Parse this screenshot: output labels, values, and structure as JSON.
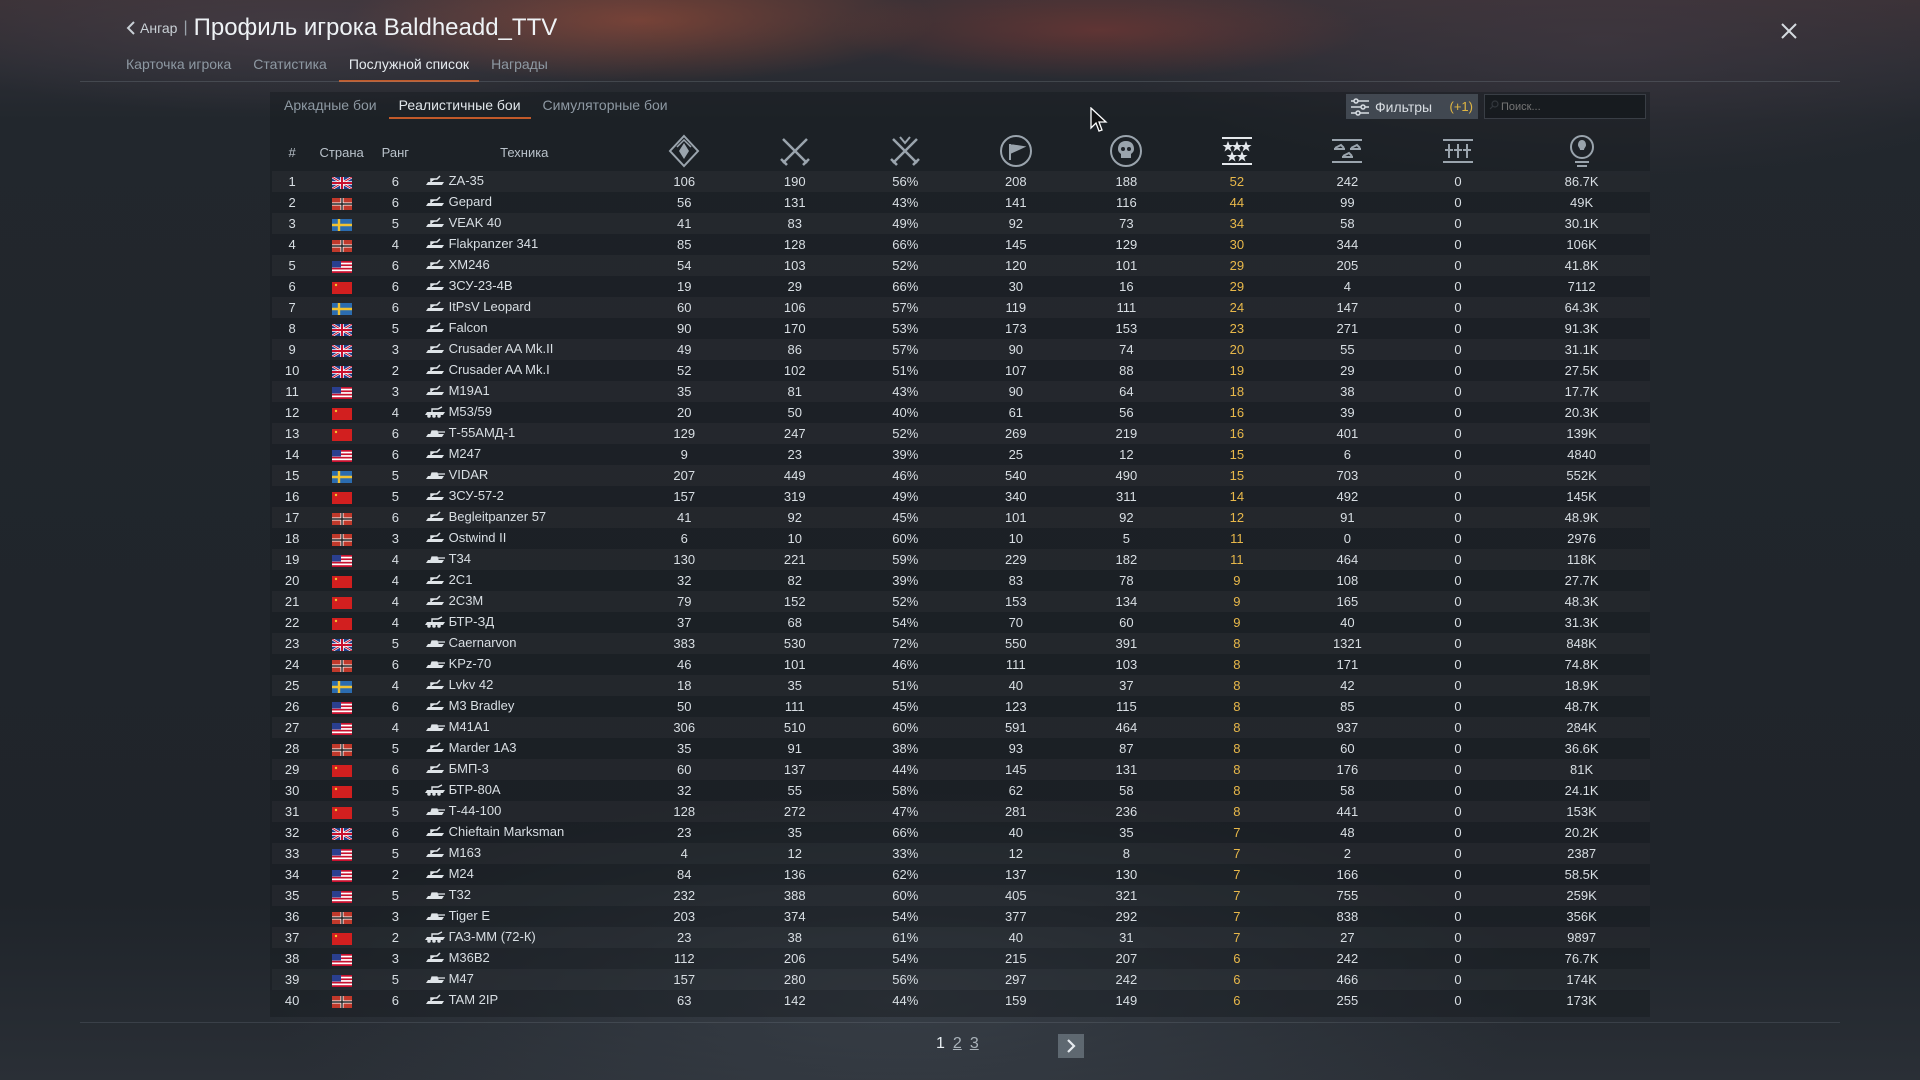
{
  "header": {
    "back_label": "Ангар",
    "separator": "|",
    "title": "Профиль игрока Baldheadd_TTV"
  },
  "tabs": [
    "Карточка игрока",
    "Статистика",
    "Послужной список",
    "Награды"
  ],
  "active_tab": 2,
  "subtabs": [
    "Аркадные бои",
    "Реалистичные бои",
    "Симуляторные бои"
  ],
  "active_subtab": 1,
  "filters": {
    "label": "Фильтры",
    "count": "(+1)"
  },
  "search": {
    "placeholder": "Поиск..."
  },
  "columns": {
    "num": "#",
    "country": "Страна",
    "rank": "Ранг",
    "vehicle": "Техника",
    "icon_cols": [
      "victories-icon",
      "battles-icon",
      "winrate-icon",
      "respawns-icon",
      "deaths-icon",
      "ace-icon",
      "air-kills-icon",
      "ground-kills-icon",
      "score-icon"
    ]
  },
  "colors": {
    "accent": "#c25a2a",
    "gold": "#e8b84a"
  },
  "rows": [
    {
      "n": "1",
      "flag": "uk",
      "rank": "6",
      "icon": "spaa",
      "name": "ZA-35",
      "c1": "106",
      "c2": "190",
      "c3": "56%",
      "c4": "208",
      "c5": "188",
      "c6": "52",
      "c7": "242",
      "c8": "0",
      "c9": "86.7K"
    },
    {
      "n": "2",
      "flag": "de",
      "rank": "6",
      "icon": "spaa",
      "name": "Gepard",
      "c1": "56",
      "c2": "131",
      "c3": "43%",
      "c4": "141",
      "c5": "116",
      "c6": "44",
      "c7": "99",
      "c8": "0",
      "c9": "49K"
    },
    {
      "n": "3",
      "flag": "se",
      "rank": "5",
      "icon": "spaa",
      "name": "VEAK 40",
      "c1": "41",
      "c2": "83",
      "c3": "49%",
      "c4": "92",
      "c5": "73",
      "c6": "34",
      "c7": "58",
      "c8": "0",
      "c9": "30.1K"
    },
    {
      "n": "4",
      "flag": "de",
      "rank": "4",
      "icon": "spaa",
      "name": "Flakpanzer 341",
      "c1": "85",
      "c2": "128",
      "c3": "66%",
      "c4": "145",
      "c5": "129",
      "c6": "30",
      "c7": "344",
      "c8": "0",
      "c9": "106K"
    },
    {
      "n": "5",
      "flag": "us",
      "rank": "6",
      "icon": "spaa",
      "name": "XM246",
      "c1": "54",
      "c2": "103",
      "c3": "52%",
      "c4": "120",
      "c5": "101",
      "c6": "29",
      "c7": "205",
      "c8": "0",
      "c9": "41.8K"
    },
    {
      "n": "6",
      "flag": "ussr",
      "rank": "6",
      "icon": "spaa",
      "name": "ЗСУ-23-4В",
      "c1": "19",
      "c2": "29",
      "c3": "66%",
      "c4": "30",
      "c5": "16",
      "c6": "29",
      "c7": "4",
      "c8": "0",
      "c9": "7112"
    },
    {
      "n": "7",
      "flag": "se",
      "rank": "6",
      "icon": "spaa",
      "name": "ItPsV Leopard",
      "c1": "60",
      "c2": "106",
      "c3": "57%",
      "c4": "119",
      "c5": "111",
      "c6": "24",
      "c7": "147",
      "c8": "0",
      "c9": "64.3K"
    },
    {
      "n": "8",
      "flag": "uk",
      "rank": "5",
      "icon": "spaa",
      "name": "Falcon",
      "c1": "90",
      "c2": "170",
      "c3": "53%",
      "c4": "173",
      "c5": "153",
      "c6": "23",
      "c7": "271",
      "c8": "0",
      "c9": "91.3K"
    },
    {
      "n": "9",
      "flag": "uk",
      "rank": "3",
      "icon": "spaa",
      "name": "Crusader AA Mk.II",
      "c1": "49",
      "c2": "86",
      "c3": "57%",
      "c4": "90",
      "c5": "74",
      "c6": "20",
      "c7": "55",
      "c8": "0",
      "c9": "31.1K"
    },
    {
      "n": "10",
      "flag": "uk",
      "rank": "2",
      "icon": "spaa",
      "name": "Crusader AA Mk.I",
      "c1": "52",
      "c2": "102",
      "c3": "51%",
      "c4": "107",
      "c5": "88",
      "c6": "19",
      "c7": "29",
      "c8": "0",
      "c9": "27.5K"
    },
    {
      "n": "11",
      "flag": "us",
      "rank": "3",
      "icon": "spaa",
      "name": "M19A1",
      "c1": "35",
      "c2": "81",
      "c3": "43%",
      "c4": "90",
      "c5": "64",
      "c6": "18",
      "c7": "38",
      "c8": "0",
      "c9": "17.7K"
    },
    {
      "n": "12",
      "flag": "ussr",
      "rank": "4",
      "icon": "spg",
      "name": "M53/59",
      "c1": "20",
      "c2": "50",
      "c3": "40%",
      "c4": "61",
      "c5": "56",
      "c6": "16",
      "c7": "39",
      "c8": "0",
      "c9": "20.3K"
    },
    {
      "n": "13",
      "flag": "ussr",
      "rank": "6",
      "icon": "tank",
      "name": "Т-55АМД-1",
      "c1": "129",
      "c2": "247",
      "c3": "52%",
      "c4": "269",
      "c5": "219",
      "c6": "16",
      "c7": "401",
      "c8": "0",
      "c9": "139K"
    },
    {
      "n": "14",
      "flag": "us",
      "rank": "6",
      "icon": "spaa",
      "name": "M247",
      "c1": "9",
      "c2": "23",
      "c3": "39%",
      "c4": "25",
      "c5": "12",
      "c6": "15",
      "c7": "6",
      "c8": "0",
      "c9": "4840"
    },
    {
      "n": "15",
      "flag": "se",
      "rank": "5",
      "icon": "tank",
      "name": "VIDAR",
      "c1": "207",
      "c2": "449",
      "c3": "46%",
      "c4": "540",
      "c5": "490",
      "c6": "15",
      "c7": "703",
      "c8": "0",
      "c9": "552K"
    },
    {
      "n": "16",
      "flag": "ussr",
      "rank": "5",
      "icon": "spaa",
      "name": "ЗСУ-57-2",
      "c1": "157",
      "c2": "319",
      "c3": "49%",
      "c4": "340",
      "c5": "311",
      "c6": "14",
      "c7": "492",
      "c8": "0",
      "c9": "145K"
    },
    {
      "n": "17",
      "flag": "de",
      "rank": "6",
      "icon": "spaa",
      "name": "Begleitpanzer 57",
      "c1": "41",
      "c2": "92",
      "c3": "45%",
      "c4": "101",
      "c5": "92",
      "c6": "12",
      "c7": "91",
      "c8": "0",
      "c9": "48.9K"
    },
    {
      "n": "18",
      "flag": "de",
      "rank": "3",
      "icon": "spaa",
      "name": "Ostwind II",
      "c1": "6",
      "c2": "10",
      "c3": "60%",
      "c4": "10",
      "c5": "5",
      "c6": "11",
      "c7": "0",
      "c8": "0",
      "c9": "2976"
    },
    {
      "n": "19",
      "flag": "us",
      "rank": "4",
      "icon": "tank",
      "name": "T34",
      "c1": "130",
      "c2": "221",
      "c3": "59%",
      "c4": "229",
      "c5": "182",
      "c6": "11",
      "c7": "464",
      "c8": "0",
      "c9": "118K"
    },
    {
      "n": "20",
      "flag": "ussr",
      "rank": "4",
      "icon": "spaa",
      "name": "2С1",
      "c1": "32",
      "c2": "82",
      "c3": "39%",
      "c4": "83",
      "c5": "78",
      "c6": "9",
      "c7": "108",
      "c8": "0",
      "c9": "27.7K"
    },
    {
      "n": "21",
      "flag": "ussr",
      "rank": "4",
      "icon": "spaa",
      "name": "2С3М",
      "c1": "79",
      "c2": "152",
      "c3": "52%",
      "c4": "153",
      "c5": "134",
      "c6": "9",
      "c7": "165",
      "c8": "0",
      "c9": "48.3K"
    },
    {
      "n": "22",
      "flag": "ussr",
      "rank": "4",
      "icon": "spg",
      "name": "БТР-ЗД",
      "c1": "37",
      "c2": "68",
      "c3": "54%",
      "c4": "70",
      "c5": "60",
      "c6": "9",
      "c7": "40",
      "c8": "0",
      "c9": "31.3K"
    },
    {
      "n": "23",
      "flag": "uk",
      "rank": "5",
      "icon": "tank",
      "name": "Caernarvon",
      "c1": "383",
      "c2": "530",
      "c3": "72%",
      "c4": "550",
      "c5": "391",
      "c6": "8",
      "c7": "1321",
      "c8": "0",
      "c9": "848K"
    },
    {
      "n": "24",
      "flag": "de",
      "rank": "6",
      "icon": "tank",
      "name": "KPz-70",
      "c1": "46",
      "c2": "101",
      "c3": "46%",
      "c4": "111",
      "c5": "103",
      "c6": "8",
      "c7": "171",
      "c8": "0",
      "c9": "74.8K"
    },
    {
      "n": "25",
      "flag": "se",
      "rank": "4",
      "icon": "spaa",
      "name": "Lvkv 42",
      "c1": "18",
      "c2": "35",
      "c3": "51%",
      "c4": "40",
      "c5": "37",
      "c6": "8",
      "c7": "42",
      "c8": "0",
      "c9": "18.9K"
    },
    {
      "n": "26",
      "flag": "us",
      "rank": "6",
      "icon": "spaa",
      "name": "M3 Bradley",
      "c1": "50",
      "c2": "111",
      "c3": "45%",
      "c4": "123",
      "c5": "115",
      "c6": "8",
      "c7": "85",
      "c8": "0",
      "c9": "48.7K"
    },
    {
      "n": "27",
      "flag": "us",
      "rank": "4",
      "icon": "tank",
      "name": "M41A1",
      "c1": "306",
      "c2": "510",
      "c3": "60%",
      "c4": "591",
      "c5": "464",
      "c6": "8",
      "c7": "937",
      "c8": "0",
      "c9": "284K"
    },
    {
      "n": "28",
      "flag": "de",
      "rank": "5",
      "icon": "spaa",
      "name": "Marder 1A3",
      "c1": "35",
      "c2": "91",
      "c3": "38%",
      "c4": "93",
      "c5": "87",
      "c6": "8",
      "c7": "60",
      "c8": "0",
      "c9": "36.6K"
    },
    {
      "n": "29",
      "flag": "ussr",
      "rank": "6",
      "icon": "spaa",
      "name": "БМП-3",
      "c1": "60",
      "c2": "137",
      "c3": "44%",
      "c4": "145",
      "c5": "131",
      "c6": "8",
      "c7": "176",
      "c8": "0",
      "c9": "81K"
    },
    {
      "n": "30",
      "flag": "ussr",
      "rank": "5",
      "icon": "spg",
      "name": "БТР-80А",
      "c1": "32",
      "c2": "55",
      "c3": "58%",
      "c4": "62",
      "c5": "58",
      "c6": "8",
      "c7": "58",
      "c8": "0",
      "c9": "24.1K"
    },
    {
      "n": "31",
      "flag": "ussr",
      "rank": "5",
      "icon": "tank",
      "name": "Т-44-100",
      "c1": "128",
      "c2": "272",
      "c3": "47%",
      "c4": "281",
      "c5": "236",
      "c6": "8",
      "c7": "441",
      "c8": "0",
      "c9": "153K"
    },
    {
      "n": "32",
      "flag": "uk",
      "rank": "6",
      "icon": "spaa",
      "name": "Chieftain Marksman",
      "c1": "23",
      "c2": "35",
      "c3": "66%",
      "c4": "40",
      "c5": "35",
      "c6": "7",
      "c7": "48",
      "c8": "0",
      "c9": "20.2K"
    },
    {
      "n": "33",
      "flag": "us",
      "rank": "5",
      "icon": "spaa",
      "name": "M163",
      "c1": "4",
      "c2": "12",
      "c3": "33%",
      "c4": "12",
      "c5": "8",
      "c6": "7",
      "c7": "2",
      "c8": "0",
      "c9": "2387"
    },
    {
      "n": "34",
      "flag": "us",
      "rank": "2",
      "icon": "spaa",
      "name": "M24",
      "c1": "84",
      "c2": "136",
      "c3": "62%",
      "c4": "137",
      "c5": "130",
      "c6": "7",
      "c7": "166",
      "c8": "0",
      "c9": "58.5K"
    },
    {
      "n": "35",
      "flag": "us",
      "rank": "5",
      "icon": "tank",
      "name": "T32",
      "c1": "232",
      "c2": "388",
      "c3": "60%",
      "c4": "405",
      "c5": "321",
      "c6": "7",
      "c7": "755",
      "c8": "0",
      "c9": "259K"
    },
    {
      "n": "36",
      "flag": "de",
      "rank": "3",
      "icon": "tank",
      "name": "Tiger E",
      "c1": "203",
      "c2": "374",
      "c3": "54%",
      "c4": "377",
      "c5": "292",
      "c6": "7",
      "c7": "838",
      "c8": "0",
      "c9": "356K"
    },
    {
      "n": "37",
      "flag": "ussr",
      "rank": "2",
      "icon": "spg",
      "name": "ГАЗ-ММ (72-К)",
      "c1": "23",
      "c2": "38",
      "c3": "61%",
      "c4": "40",
      "c5": "31",
      "c6": "7",
      "c7": "27",
      "c8": "0",
      "c9": "9897"
    },
    {
      "n": "38",
      "flag": "us",
      "rank": "3",
      "icon": "spaa",
      "name": "M36B2",
      "c1": "112",
      "c2": "206",
      "c3": "54%",
      "c4": "215",
      "c5": "207",
      "c6": "6",
      "c7": "242",
      "c8": "0",
      "c9": "76.7K"
    },
    {
      "n": "39",
      "flag": "us",
      "rank": "5",
      "icon": "tank",
      "name": "M47",
      "c1": "157",
      "c2": "280",
      "c3": "56%",
      "c4": "297",
      "c5": "242",
      "c6": "6",
      "c7": "466",
      "c8": "0",
      "c9": "174K"
    },
    {
      "n": "40",
      "flag": "de",
      "rank": "6",
      "icon": "spaa",
      "name": "TAM 2IP",
      "c1": "63",
      "c2": "142",
      "c3": "44%",
      "c4": "159",
      "c5": "149",
      "c6": "6",
      "c7": "255",
      "c8": "0",
      "c9": "173K"
    }
  ],
  "pager": {
    "current": "1",
    "pages": [
      "2",
      "3"
    ]
  }
}
